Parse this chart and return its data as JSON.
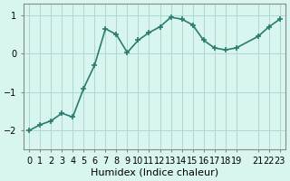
{
  "x": [
    0,
    1,
    2,
    3,
    4,
    5,
    6,
    7,
    8,
    9,
    10,
    11,
    12,
    13,
    14,
    15,
    16,
    17,
    18,
    19,
    21,
    22,
    23
  ],
  "y": [
    -2.0,
    -1.85,
    -1.75,
    -1.55,
    -1.65,
    -0.9,
    -0.3,
    0.65,
    0.5,
    0.03,
    0.35,
    0.55,
    0.7,
    0.95,
    0.9,
    0.75,
    0.35,
    0.15,
    0.1,
    0.15,
    0.45,
    0.7,
    0.9
  ],
  "line_color": "#2a7d6e",
  "marker": "+",
  "marker_size": 5,
  "linewidth": 1.2,
  "bg_color": "#d8f5f0",
  "grid_color": "#b0d8d0",
  "xlabel": "Humidex (Indice chaleur)",
  "xlabel_fontsize": 8,
  "tick_fontsize": 7,
  "yticks": [
    -2,
    -1,
    0,
    1
  ],
  "xtick_positions": [
    0,
    1,
    2,
    3,
    4,
    5,
    6,
    7,
    8,
    9,
    10,
    11,
    12,
    13,
    14,
    15,
    16,
    17,
    18,
    19,
    21,
    22,
    23
  ],
  "xtick_labels": [
    "0",
    "1",
    "2",
    "3",
    "4",
    "5",
    "6",
    "7",
    "8",
    "9",
    "10",
    "11",
    "12",
    "13",
    "14",
    "15",
    "16",
    "17",
    "18",
    "19",
    "21",
    "22",
    "23"
  ],
  "ylim": [
    -2.5,
    1.3
  ],
  "xlim": [
    -0.5,
    23.5
  ]
}
